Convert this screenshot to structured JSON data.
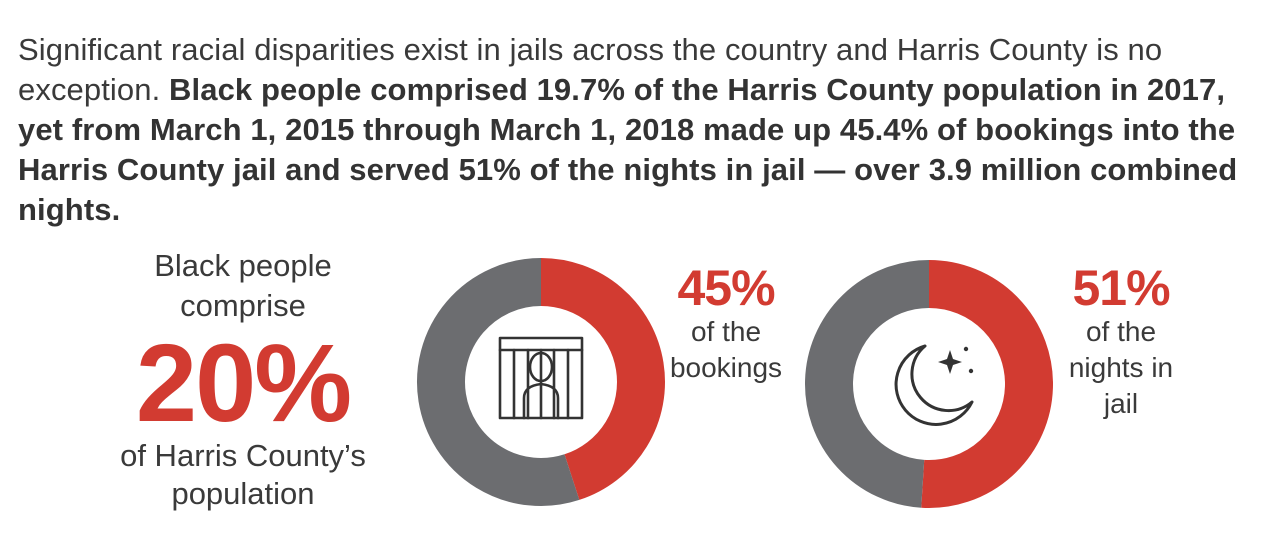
{
  "intro": {
    "light_text": "Significant racial disparities exist in jails across the country and Harris County is no exception.",
    "bold_text": "Black people comprised 19.7% of the Harris County population in 2017, yet from March 1, 2015 through March 1, 2018 made up 45.4% of bookings into the Harris County jail and served 51% of the nights in jail — over 3.9 million combined nights."
  },
  "population": {
    "label_top_1": "Black people",
    "label_top_2": "comprise",
    "value_text": "20%",
    "label_bottom_1": "of Harris County’s",
    "label_bottom_2": "population"
  },
  "colors": {
    "highlight": "#d23b31",
    "remainder": "#6c6d70",
    "text": "#333333"
  },
  "chart_data": [
    {
      "type": "pie",
      "title": "",
      "slices": [
        {
          "label": "Black people",
          "value": 45
        },
        {
          "label": "",
          "value": 55
        }
      ],
      "value_text": "45%",
      "caption_1": "of the",
      "caption_2": "bookings",
      "icon": "jail-cell-icon"
    },
    {
      "type": "pie",
      "title": "",
      "slices": [
        {
          "label": "Black people",
          "value": 51
        },
        {
          "label": "",
          "value": 49
        }
      ],
      "value_text": "51%",
      "caption_1": "of the",
      "caption_2": "nights in",
      "caption_3": "jail",
      "icon": "moon-stars-icon"
    }
  ]
}
